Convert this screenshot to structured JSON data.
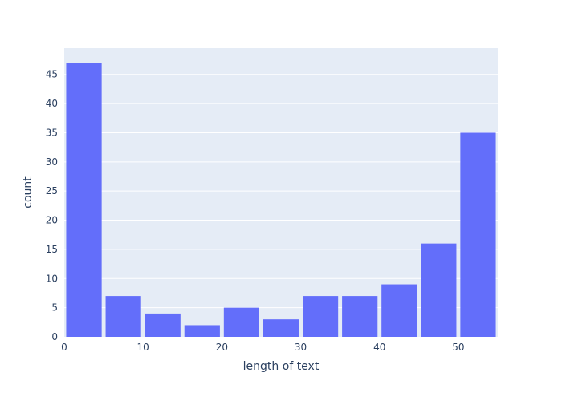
{
  "chart_data": {
    "type": "bar",
    "title": "",
    "xlabel": "length of text",
    "ylabel": "count",
    "xlim": [
      0,
      55
    ],
    "ylim": [
      0,
      49.5
    ],
    "x_ticks": [
      0,
      10,
      20,
      30,
      40,
      50
    ],
    "y_ticks": [
      0,
      5,
      10,
      15,
      20,
      25,
      30,
      35,
      40,
      45
    ],
    "bin_width": 5,
    "bins": [
      {
        "start": 0,
        "end": 5,
        "count": 47
      },
      {
        "start": 5,
        "end": 10,
        "count": 7
      },
      {
        "start": 10,
        "end": 15,
        "count": 4
      },
      {
        "start": 15,
        "end": 20,
        "count": 2
      },
      {
        "start": 20,
        "end": 25,
        "count": 5
      },
      {
        "start": 25,
        "end": 30,
        "count": 3
      },
      {
        "start": 30,
        "end": 35,
        "count": 7
      },
      {
        "start": 35,
        "end": 40,
        "count": 7
      },
      {
        "start": 40,
        "end": 45,
        "count": 9
      },
      {
        "start": 45,
        "end": 50,
        "count": 16
      },
      {
        "start": 50,
        "end": 55,
        "count": 35
      }
    ],
    "grid": true,
    "legend": "none",
    "colors": {
      "bar": "#636efa",
      "plot_background": "#e5ecf6",
      "grid": "#ffffff",
      "text": "#2a3f5f"
    }
  }
}
